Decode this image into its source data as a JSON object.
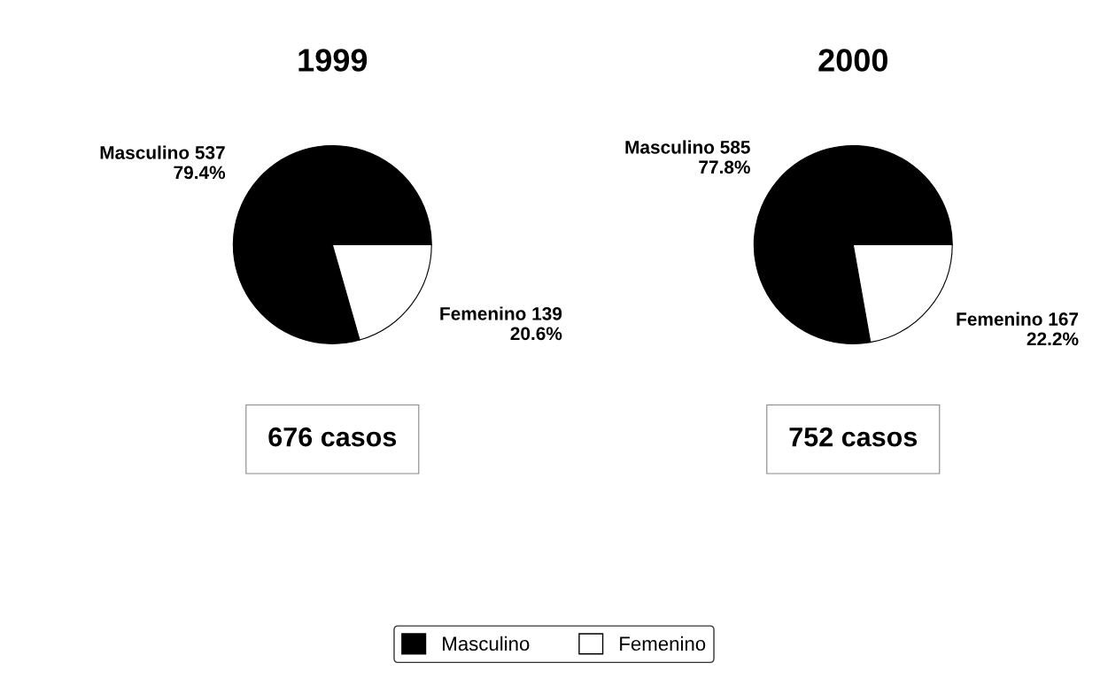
{
  "chart_data": [
    {
      "type": "pie",
      "title": "1999",
      "categories": [
        "Masculino",
        "Femenino"
      ],
      "values": [
        537,
        139
      ],
      "colors": [
        "#000000",
        "#ffffff"
      ],
      "value_labels": [
        "537\n79.4%",
        "139\n20.6%"
      ],
      "annotations": [
        "676 casos"
      ],
      "legend": "bottom"
    },
    {
      "type": "pie",
      "title": "2000",
      "categories": [
        "Masculino",
        "Femenino"
      ],
      "values": [
        585,
        167
      ],
      "colors": [
        "#000000",
        "#ffffff"
      ],
      "value_labels": [
        "585\n77.8%",
        "167\n22.2%"
      ],
      "annotations": [
        "752 casos"
      ]
    }
  ]
}
